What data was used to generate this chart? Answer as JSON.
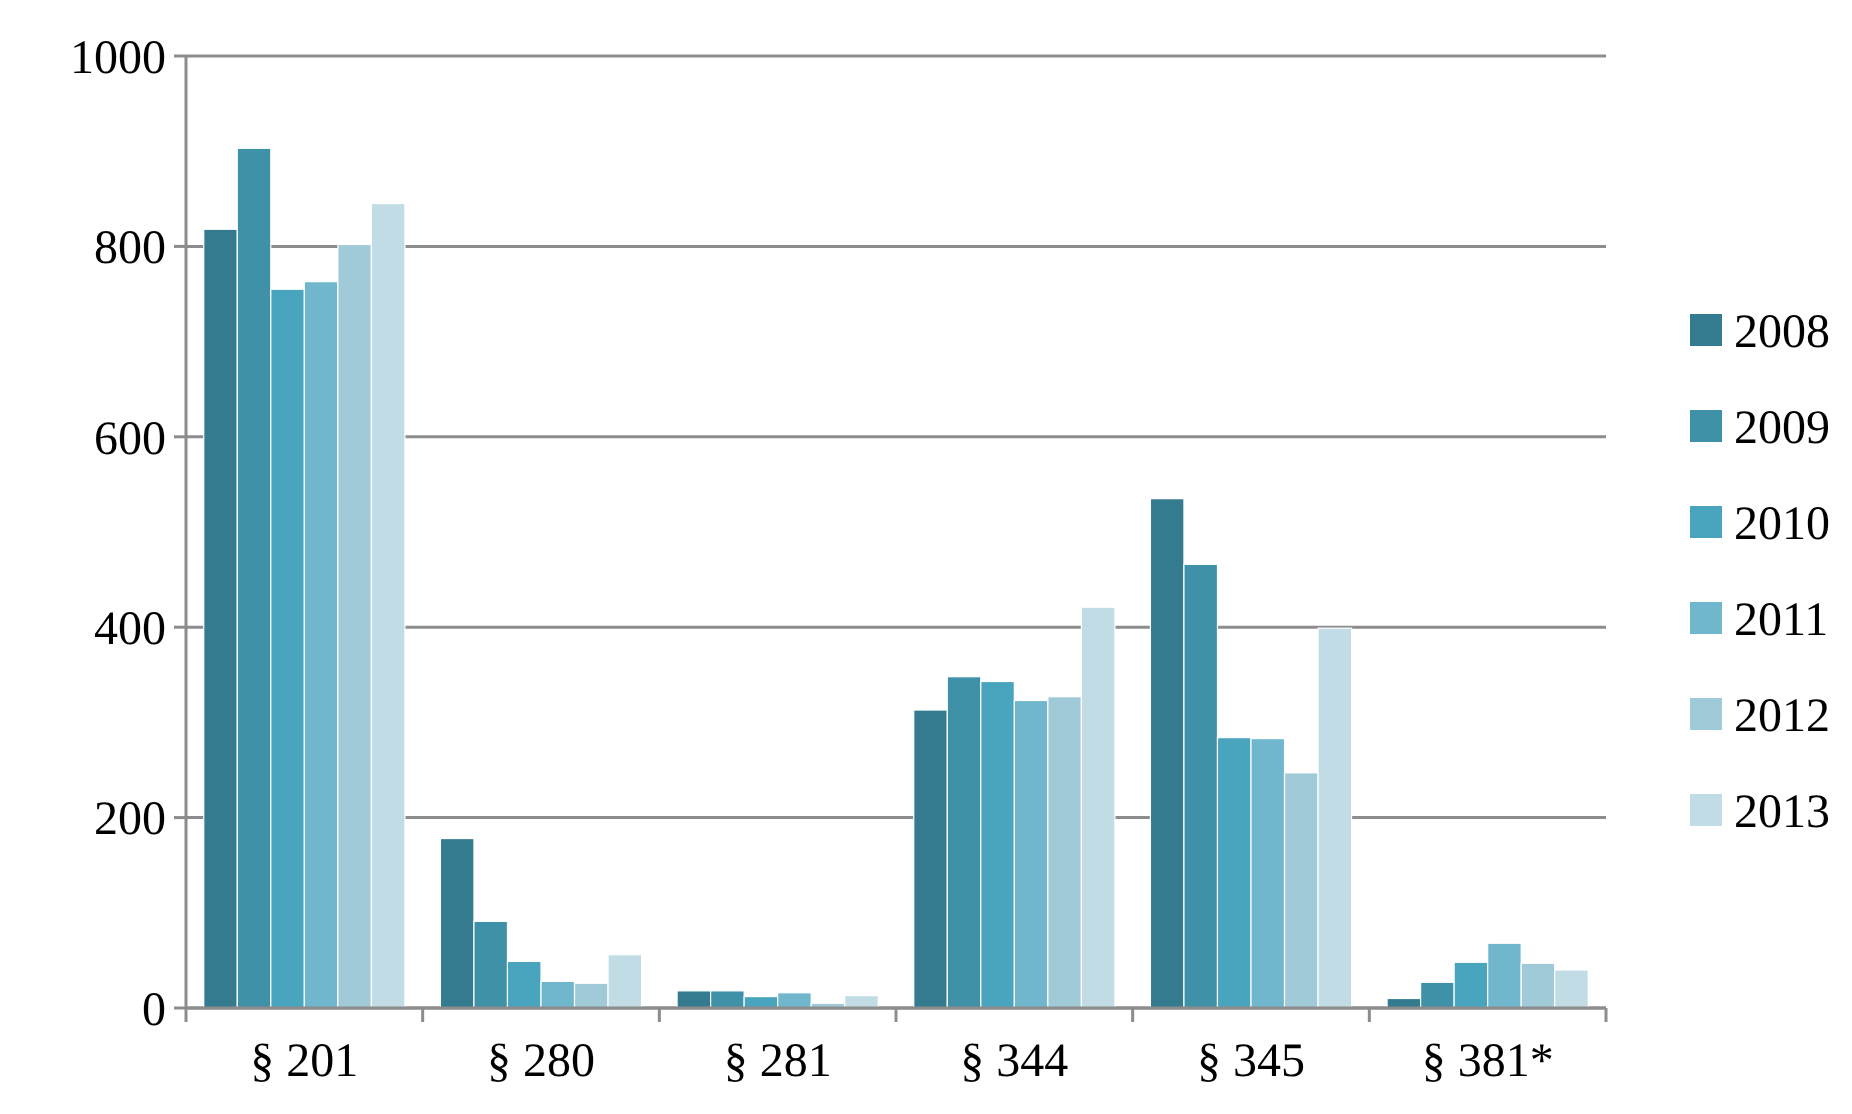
{
  "chart_data": {
    "type": "bar",
    "categories": [
      "§ 201",
      "§ 280",
      "§ 281",
      "§ 344",
      "§ 345",
      "§ 381*"
    ],
    "series": [
      {
        "name": "2008",
        "color": "#357b8f",
        "values": [
          818,
          178,
          18,
          313,
          535,
          10
        ]
      },
      {
        "name": "2009",
        "color": "#3f91a8",
        "values": [
          903,
          91,
          18,
          348,
          466,
          27
        ]
      },
      {
        "name": "2010",
        "color": "#48a5bd",
        "values": [
          755,
          49,
          12,
          343,
          284,
          48
        ]
      },
      {
        "name": "2011",
        "color": "#70b7ce",
        "values": [
          763,
          28,
          16,
          323,
          283,
          68
        ]
      },
      {
        "name": "2012",
        "color": "#a1cad9",
        "values": [
          802,
          26,
          5,
          327,
          247,
          47
        ]
      },
      {
        "name": "2013",
        "color": "#c2dce5",
        "values": [
          845,
          56,
          13,
          421,
          399,
          40
        ]
      }
    ],
    "ylim": [
      0,
      1000
    ],
    "yticks": [
      0,
      200,
      400,
      600,
      800,
      1000
    ],
    "grid": "y",
    "legend": "right"
  }
}
